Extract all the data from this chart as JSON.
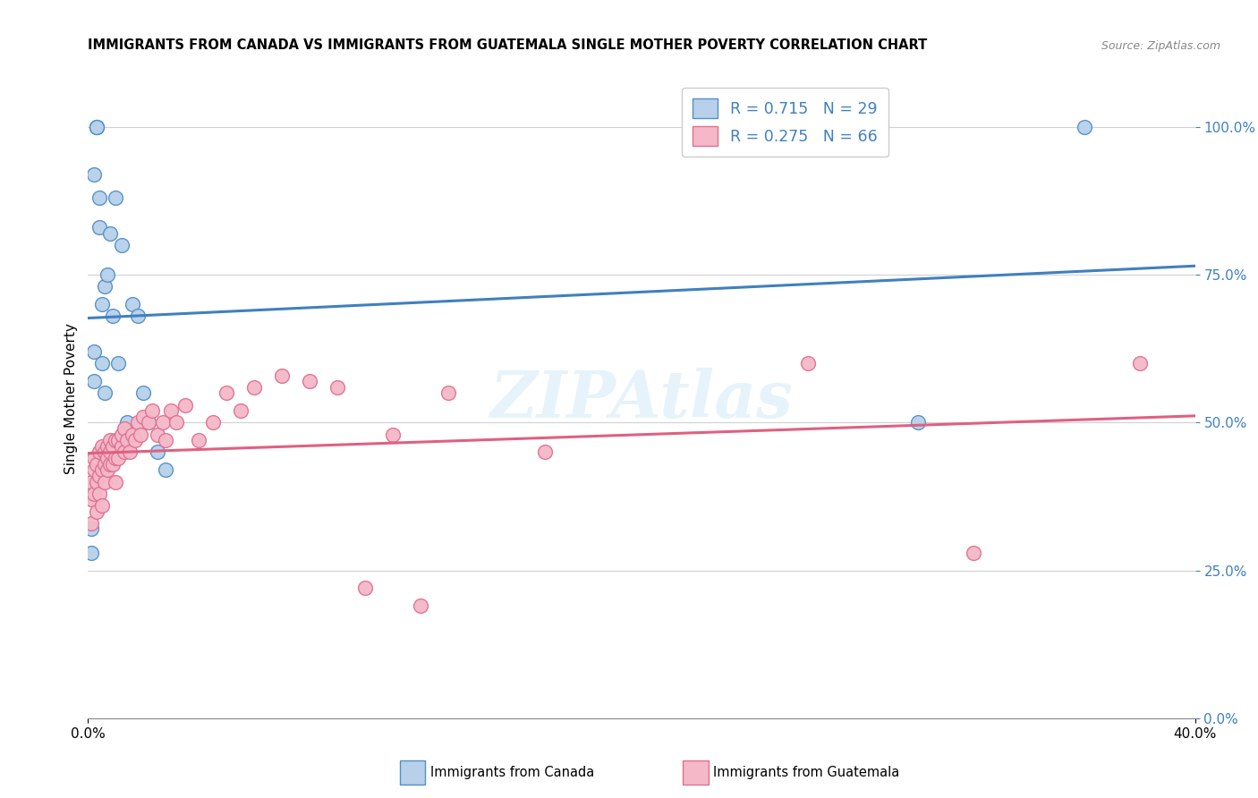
{
  "title": "IMMIGRANTS FROM CANADA VS IMMIGRANTS FROM GUATEMALA SINGLE MOTHER POVERTY CORRELATION CHART",
  "source": "Source: ZipAtlas.com",
  "ylabel": "Single Mother Poverty",
  "legend_blue_label": "R = 0.715   N = 29",
  "legend_pink_label": "R = 0.275   N = 66",
  "watermark": "ZIPAtlas",
  "blue_fill": "#b8d0ea",
  "blue_edge": "#5090c8",
  "blue_line": "#4080c0",
  "pink_fill": "#f4b8c8",
  "pink_edge": "#e07090",
  "pink_line": "#e06080",
  "xmin": 0.0,
  "xmax": 0.4,
  "ymin": 0.0,
  "ymax": 1.08,
  "canada_x": [
    0.001,
    0.001,
    0.002,
    0.002,
    0.002,
    0.003,
    0.003,
    0.003,
    0.004,
    0.004,
    0.005,
    0.005,
    0.006,
    0.006,
    0.007,
    0.008,
    0.009,
    0.01,
    0.011,
    0.012,
    0.014,
    0.016,
    0.018,
    0.02,
    0.022,
    0.025,
    0.028,
    0.3,
    0.36
  ],
  "canada_y": [
    0.28,
    0.32,
    0.57,
    0.62,
    0.92,
    1.0,
    1.0,
    1.0,
    0.88,
    0.83,
    0.6,
    0.7,
    0.73,
    0.55,
    0.75,
    0.82,
    0.68,
    0.88,
    0.6,
    0.8,
    0.5,
    0.7,
    0.68,
    0.55,
    0.5,
    0.45,
    0.42,
    0.5,
    1.0
  ],
  "guatemala_x": [
    0.001,
    0.001,
    0.001,
    0.002,
    0.002,
    0.002,
    0.003,
    0.003,
    0.003,
    0.004,
    0.004,
    0.004,
    0.005,
    0.005,
    0.005,
    0.006,
    0.006,
    0.006,
    0.007,
    0.007,
    0.007,
    0.008,
    0.008,
    0.008,
    0.009,
    0.009,
    0.01,
    0.01,
    0.01,
    0.011,
    0.011,
    0.012,
    0.012,
    0.013,
    0.013,
    0.014,
    0.015,
    0.016,
    0.017,
    0.018,
    0.019,
    0.02,
    0.022,
    0.023,
    0.025,
    0.027,
    0.028,
    0.03,
    0.032,
    0.035,
    0.04,
    0.045,
    0.05,
    0.055,
    0.06,
    0.07,
    0.08,
    0.09,
    0.1,
    0.11,
    0.12,
    0.13,
    0.165,
    0.26,
    0.32,
    0.38
  ],
  "guatemala_y": [
    0.33,
    0.37,
    0.4,
    0.38,
    0.42,
    0.44,
    0.35,
    0.4,
    0.43,
    0.38,
    0.41,
    0.45,
    0.36,
    0.42,
    0.46,
    0.4,
    0.43,
    0.45,
    0.42,
    0.44,
    0.46,
    0.43,
    0.45,
    0.47,
    0.43,
    0.46,
    0.4,
    0.44,
    0.47,
    0.44,
    0.47,
    0.46,
    0.48,
    0.45,
    0.49,
    0.47,
    0.45,
    0.48,
    0.47,
    0.5,
    0.48,
    0.51,
    0.5,
    0.52,
    0.48,
    0.5,
    0.47,
    0.52,
    0.5,
    0.53,
    0.47,
    0.5,
    0.55,
    0.52,
    0.56,
    0.58,
    0.57,
    0.56,
    0.22,
    0.48,
    0.19,
    0.55,
    0.45,
    0.6,
    0.28,
    0.6
  ],
  "yticks": [
    0.0,
    0.25,
    0.5,
    0.75,
    1.0
  ],
  "ytick_labels": [
    "0.0%",
    "25.0%",
    "50.0%",
    "75.0%",
    "100.0%"
  ],
  "xticks": [
    0.0,
    0.05,
    0.1,
    0.15,
    0.2,
    0.25,
    0.3,
    0.35,
    0.4
  ],
  "bottom_label_canada": "Immigrants from Canada",
  "bottom_label_guatemala": "Immigrants from Guatemala"
}
